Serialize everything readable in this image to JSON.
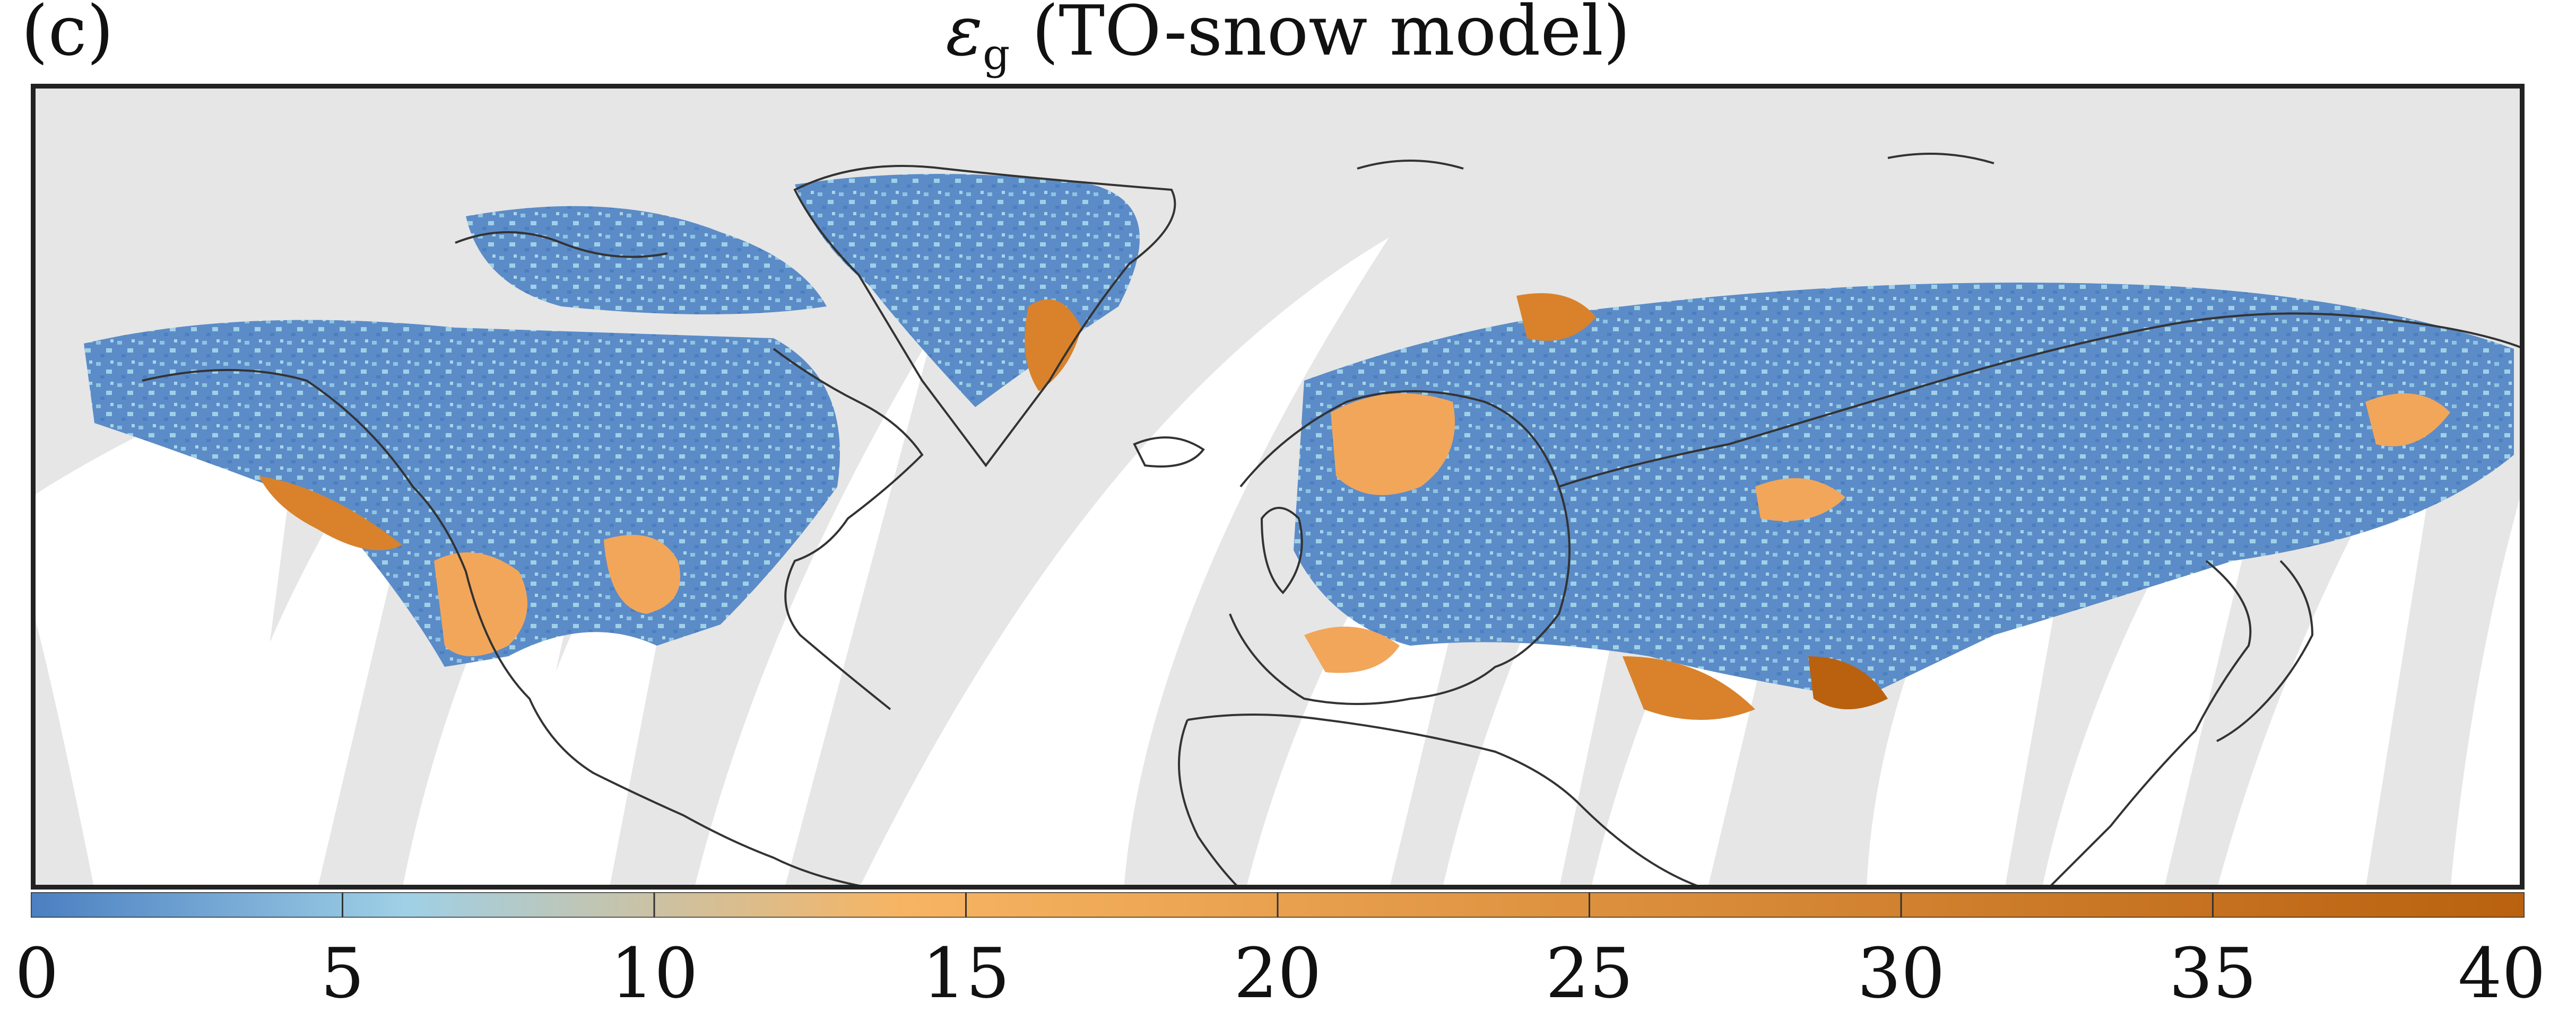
{
  "panel_label": "(c)",
  "title": {
    "variable": "ε",
    "subscript": "g",
    "model": "(TO-snow model)"
  },
  "colorbar": {
    "min": 0,
    "max": 40,
    "ticks": [
      0,
      5,
      10,
      15,
      20,
      25,
      30,
      35,
      40
    ],
    "tick_labels": [
      "0",
      "5",
      "10",
      "15",
      "20",
      "25",
      "30",
      "35",
      "40"
    ],
    "colors": [
      "#4a7fc1",
      "#9fd0e6",
      "#f7b462",
      "#b9610f"
    ]
  },
  "map": {
    "background_no_data_color": "#e6e6e6",
    "gap_color": "#ffffff",
    "coastline_color": "#333333",
    "low_value_color": "#4a7fc1",
    "mid_value_color": "#9fd0e6",
    "high_value_color": "#d9822b"
  }
}
